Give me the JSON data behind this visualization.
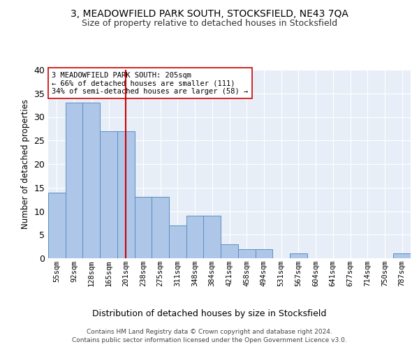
{
  "title1": "3, MEADOWFIELD PARK SOUTH, STOCKSFIELD, NE43 7QA",
  "title2": "Size of property relative to detached houses in Stocksfield",
  "xlabel": "Distribution of detached houses by size in Stocksfield",
  "ylabel": "Number of detached properties",
  "bin_labels": [
    "55sqm",
    "92sqm",
    "128sqm",
    "165sqm",
    "201sqm",
    "238sqm",
    "275sqm",
    "311sqm",
    "348sqm",
    "384sqm",
    "421sqm",
    "458sqm",
    "494sqm",
    "531sqm",
    "567sqm",
    "604sqm",
    "641sqm",
    "677sqm",
    "714sqm",
    "750sqm",
    "787sqm"
  ],
  "values": [
    14,
    33,
    33,
    27,
    27,
    13,
    13,
    7,
    9,
    9,
    3,
    2,
    2,
    0,
    1,
    0,
    0,
    0,
    0,
    0,
    1
  ],
  "bar_color": "#aec6e8",
  "bar_edge_color": "#5a8fc2",
  "bar_width": 1.0,
  "vline_x": 4,
  "vline_color": "#cc0000",
  "annotation_text": "3 MEADOWFIELD PARK SOUTH: 205sqm\n← 66% of detached houses are smaller (111)\n34% of semi-detached houses are larger (58) →",
  "annotation_box_color": "#ffffff",
  "annotation_box_edge": "#cc0000",
  "ylim": [
    0,
    40
  ],
  "yticks": [
    0,
    5,
    10,
    15,
    20,
    25,
    30,
    35,
    40
  ],
  "background_color": "#e8eef7",
  "footer1": "Contains HM Land Registry data © Crown copyright and database right 2024.",
  "footer2": "Contains public sector information licensed under the Open Government Licence v3.0."
}
